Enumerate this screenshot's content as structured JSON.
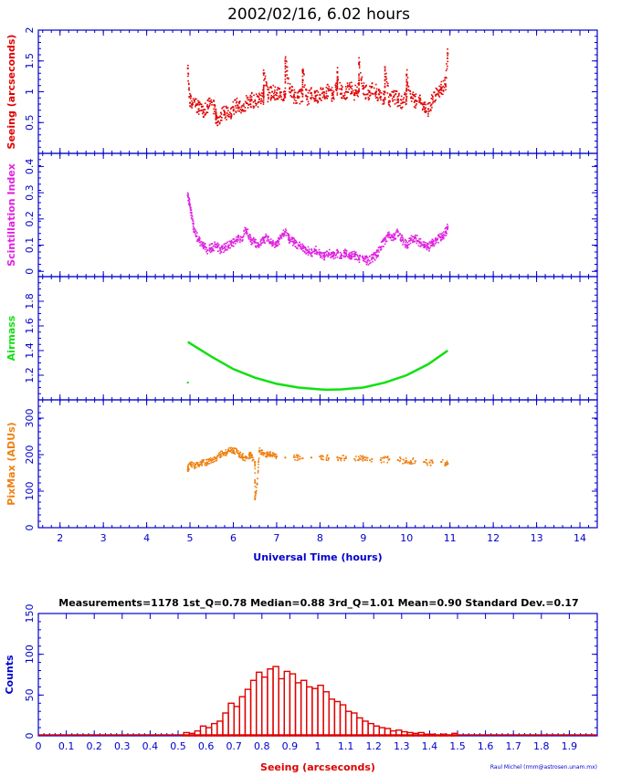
{
  "title": "2002/02/16, 6.02 hours",
  "stats_line": "Measurements=1178   1st_Q=0.78   Median=0.88   3rd_Q=1.01   Mean=0.90   Standard Dev.=0.17",
  "credit": "Raul Michel (rmm@astrosen.unam.mx)",
  "colors": {
    "axis": "#0000cc",
    "seeing": "#e00000",
    "scint": "#e020e0",
    "airmass": "#10e010",
    "pixmax": "#f08010",
    "hist": "#e00000"
  },
  "chart_data": [
    {
      "type": "scatter",
      "panel": "seeing",
      "ylabel": "Seeing (arcseconds)",
      "ylim": [
        0,
        2
      ],
      "yticks": [
        "0.5",
        "1",
        "1.5",
        "2"
      ],
      "xlim": [
        1.5,
        14.4
      ],
      "points": [
        [
          4.95,
          1.38
        ],
        [
          5.0,
          0.82
        ],
        [
          5.1,
          0.86
        ],
        [
          5.2,
          0.72
        ],
        [
          5.3,
          0.7
        ],
        [
          5.4,
          0.76
        ],
        [
          5.5,
          0.83
        ],
        [
          5.6,
          0.64
        ],
        [
          5.7,
          0.6
        ],
        [
          5.8,
          0.66
        ],
        [
          5.9,
          0.63
        ],
        [
          6.0,
          0.75
        ],
        [
          6.1,
          0.78
        ],
        [
          6.2,
          0.7
        ],
        [
          6.3,
          0.82
        ],
        [
          6.4,
          0.87
        ],
        [
          6.5,
          0.85
        ],
        [
          6.6,
          0.88
        ],
        [
          6.7,
          0.92
        ],
        [
          6.8,
          0.95
        ],
        [
          6.9,
          1.0
        ],
        [
          7.0,
          0.98
        ],
        [
          7.1,
          0.92
        ],
        [
          7.2,
          0.96
        ],
        [
          7.3,
          1.05
        ],
        [
          7.4,
          0.93
        ],
        [
          7.5,
          0.9
        ],
        [
          7.6,
          0.96
        ],
        [
          7.7,
          0.88
        ],
        [
          7.8,
          0.98
        ],
        [
          7.9,
          0.93
        ],
        [
          8.0,
          0.95
        ],
        [
          8.1,
          0.99
        ],
        [
          8.2,
          1.02
        ],
        [
          8.3,
          0.95
        ],
        [
          8.4,
          1.05
        ],
        [
          8.5,
          0.97
        ],
        [
          8.6,
          1.0
        ],
        [
          8.7,
          1.08
        ],
        [
          8.8,
          0.98
        ],
        [
          8.9,
          1.02
        ],
        [
          9.0,
          1.05
        ],
        [
          9.1,
          0.96
        ],
        [
          9.2,
          1.08
        ],
        [
          9.3,
          1.0
        ],
        [
          9.4,
          0.92
        ],
        [
          9.5,
          0.88
        ],
        [
          9.6,
          0.85
        ],
        [
          9.7,
          0.92
        ],
        [
          9.8,
          0.88
        ],
        [
          9.9,
          0.82
        ],
        [
          10.0,
          0.92
        ],
        [
          10.1,
          0.9
        ],
        [
          10.2,
          0.86
        ],
        [
          10.3,
          0.85
        ],
        [
          10.4,
          0.8
        ],
        [
          10.5,
          0.72
        ],
        [
          10.6,
          0.88
        ],
        [
          10.7,
          0.96
        ],
        [
          10.8,
          1.05
        ],
        [
          10.9,
          1.12
        ],
        [
          10.95,
          1.62
        ],
        [
          7.2,
          1.5
        ],
        [
          8.9,
          1.45
        ],
        [
          9.5,
          1.4
        ],
        [
          7.6,
          1.35
        ],
        [
          6.7,
          1.3
        ],
        [
          8.4,
          1.32
        ],
        [
          10.0,
          1.28
        ],
        [
          5.6,
          0.55
        ]
      ]
    },
    {
      "type": "scatter",
      "panel": "scintillation",
      "ylabel": "Scintillation Index",
      "ylim": [
        -0.02,
        0.45
      ],
      "yticks": [
        "0",
        "0.1",
        "0.2",
        "0.3",
        "0.4"
      ],
      "xlim": [
        1.5,
        14.4
      ],
      "points": [
        [
          4.95,
          0.29
        ],
        [
          5.0,
          0.25
        ],
        [
          5.05,
          0.2
        ],
        [
          5.1,
          0.15
        ],
        [
          5.2,
          0.12
        ],
        [
          5.3,
          0.1
        ],
        [
          5.4,
          0.08
        ],
        [
          5.5,
          0.09
        ],
        [
          5.6,
          0.1
        ],
        [
          5.7,
          0.08
        ],
        [
          5.8,
          0.09
        ],
        [
          5.9,
          0.1
        ],
        [
          6.0,
          0.11
        ],
        [
          6.1,
          0.12
        ],
        [
          6.2,
          0.13
        ],
        [
          6.3,
          0.16
        ],
        [
          6.4,
          0.12
        ],
        [
          6.5,
          0.11
        ],
        [
          6.6,
          0.1
        ],
        [
          6.7,
          0.12
        ],
        [
          6.8,
          0.13
        ],
        [
          6.9,
          0.11
        ],
        [
          7.0,
          0.1
        ],
        [
          7.1,
          0.13
        ],
        [
          7.2,
          0.15
        ],
        [
          7.3,
          0.12
        ],
        [
          7.4,
          0.11
        ],
        [
          7.5,
          0.1
        ],
        [
          7.6,
          0.09
        ],
        [
          7.7,
          0.08
        ],
        [
          7.8,
          0.07
        ],
        [
          7.9,
          0.08
        ],
        [
          8.0,
          0.07
        ],
        [
          8.1,
          0.06
        ],
        [
          8.2,
          0.07
        ],
        [
          8.3,
          0.06
        ],
        [
          8.4,
          0.07
        ],
        [
          8.5,
          0.06
        ],
        [
          8.6,
          0.07
        ],
        [
          8.7,
          0.06
        ],
        [
          8.8,
          0.06
        ],
        [
          8.9,
          0.05
        ],
        [
          9.0,
          0.05
        ],
        [
          9.1,
          0.04
        ],
        [
          9.2,
          0.05
        ],
        [
          9.3,
          0.06
        ],
        [
          9.4,
          0.09
        ],
        [
          9.5,
          0.12
        ],
        [
          9.6,
          0.14
        ],
        [
          9.7,
          0.13
        ],
        [
          9.8,
          0.15
        ],
        [
          9.9,
          0.12
        ],
        [
          10.0,
          0.1
        ],
        [
          10.1,
          0.12
        ],
        [
          10.2,
          0.13
        ],
        [
          10.3,
          0.11
        ],
        [
          10.4,
          0.1
        ],
        [
          10.5,
          0.09
        ],
        [
          10.6,
          0.11
        ],
        [
          10.7,
          0.12
        ],
        [
          10.8,
          0.13
        ],
        [
          10.9,
          0.15
        ],
        [
          10.95,
          0.17
        ]
      ]
    },
    {
      "type": "line",
      "panel": "airmass",
      "ylabel": "Airmass",
      "ylim": [
        1.0,
        2.0
      ],
      "yticks": [
        "1.2",
        "1.4",
        "1.6",
        "1.8"
      ],
      "xlim": [
        1.5,
        14.4
      ],
      "x": [
        4.95,
        5.5,
        6.0,
        6.5,
        7.0,
        7.5,
        8.0,
        8.16,
        8.5,
        9.0,
        9.5,
        10.0,
        10.5,
        10.95
      ],
      "y": [
        1.47,
        1.35,
        1.25,
        1.18,
        1.13,
        1.1,
        1.085,
        1.082,
        1.085,
        1.1,
        1.14,
        1.2,
        1.29,
        1.4
      ],
      "outlier": [
        4.95,
        1.14
      ]
    },
    {
      "type": "scatter",
      "panel": "pixmax",
      "ylabel": "PixMax (ADUs)",
      "ylim": [
        0,
        350
      ],
      "yticks": [
        "0",
        "100",
        "200",
        "300"
      ],
      "xlim": [
        1.5,
        14.4
      ],
      "points": [
        [
          4.95,
          160
        ],
        [
          5.0,
          175
        ],
        [
          5.1,
          168
        ],
        [
          5.2,
          172
        ],
        [
          5.3,
          180
        ],
        [
          5.4,
          178
        ],
        [
          5.5,
          185
        ],
        [
          5.6,
          190
        ],
        [
          5.7,
          200
        ],
        [
          5.8,
          205
        ],
        [
          5.9,
          210
        ],
        [
          6.0,
          212
        ],
        [
          6.1,
          205
        ],
        [
          6.2,
          195
        ],
        [
          6.3,
          190
        ],
        [
          6.4,
          200
        ],
        [
          6.5,
          180
        ],
        [
          6.5,
          80
        ],
        [
          6.55,
          120
        ],
        [
          6.6,
          210
        ],
        [
          6.7,
          205
        ],
        [
          6.8,
          200
        ],
        [
          6.9,
          198
        ],
        [
          7.0,
          195
        ],
        [
          7.2,
          192
        ],
        [
          7.4,
          193
        ],
        [
          7.6,
          190
        ],
        [
          7.8,
          192
        ],
        [
          8.0,
          195
        ],
        [
          8.2,
          190
        ],
        [
          8.4,
          193
        ],
        [
          8.6,
          190
        ],
        [
          8.8,
          188
        ],
        [
          9.0,
          190
        ],
        [
          9.2,
          188
        ],
        [
          9.4,
          185
        ],
        [
          9.6,
          187
        ],
        [
          9.8,
          185
        ],
        [
          10.0,
          183
        ],
        [
          10.2,
          182
        ],
        [
          10.4,
          180
        ],
        [
          10.6,
          178
        ],
        [
          10.8,
          180
        ],
        [
          10.95,
          175
        ]
      ]
    },
    {
      "type": "bar",
      "panel": "histogram",
      "xlabel": "Seeing (arcseconds)",
      "ylabel": "Counts",
      "ylim": [
        0,
        150
      ],
      "yticks": [
        "0",
        "50",
        "100",
        "150"
      ],
      "xlim": [
        0,
        2.0
      ],
      "xticks": [
        "0",
        "0.1",
        "0.2",
        "0.3",
        "0.4",
        "0.5",
        "0.6",
        "0.7",
        "0.8",
        "0.9",
        "1",
        "1.1",
        "1.2",
        "1.3",
        "1.4",
        "1.5",
        "1.6",
        "1.7",
        "1.8",
        "1.9"
      ],
      "bin_width": 0.02,
      "bin_starts": [
        0.52,
        0.54,
        0.56,
        0.58,
        0.6,
        0.62,
        0.64,
        0.66,
        0.68,
        0.7,
        0.72,
        0.74,
        0.76,
        0.78,
        0.8,
        0.82,
        0.84,
        0.86,
        0.88,
        0.9,
        0.92,
        0.94,
        0.96,
        0.98,
        1.0,
        1.02,
        1.04,
        1.06,
        1.08,
        1.1,
        1.12,
        1.14,
        1.16,
        1.18,
        1.2,
        1.22,
        1.24,
        1.26,
        1.28,
        1.3,
        1.32,
        1.34,
        1.36,
        1.38,
        1.4,
        1.42,
        1.44,
        1.46,
        1.48
      ],
      "values": [
        4,
        3,
        6,
        12,
        10,
        15,
        18,
        28,
        40,
        36,
        48,
        57,
        68,
        78,
        72,
        82,
        85,
        70,
        79,
        76,
        65,
        68,
        60,
        58,
        62,
        54,
        45,
        42,
        38,
        30,
        28,
        22,
        18,
        15,
        12,
        10,
        9,
        6,
        7,
        5,
        4,
        3,
        4,
        2,
        2,
        1,
        2,
        1,
        3
      ]
    }
  ],
  "x_axis": {
    "label": "Universal Time (hours)",
    "ticks": [
      "2",
      "3",
      "4",
      "5",
      "6",
      "7",
      "8",
      "9",
      "10",
      "11",
      "12",
      "13",
      "14"
    ]
  }
}
